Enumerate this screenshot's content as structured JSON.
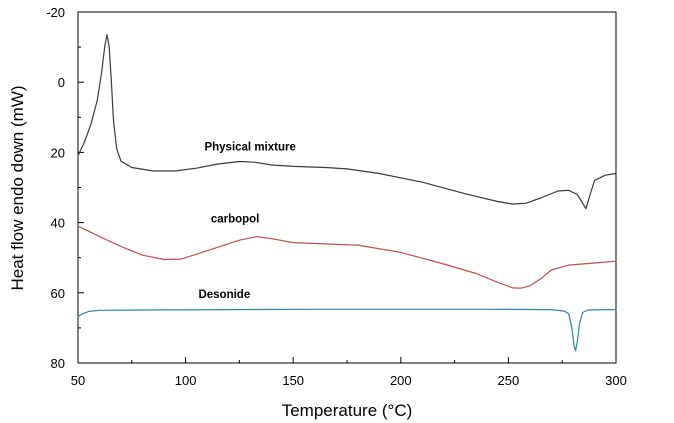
{
  "chart_data": {
    "type": "line",
    "title": "",
    "xlabel": "Temperature (°C)",
    "ylabel": "Heat flow endo down (mW)",
    "xlim": [
      50,
      300
    ],
    "ylim": [
      80,
      -20
    ],
    "y_inverted": true,
    "x_ticks": [
      "50",
      "100",
      "150",
      "200",
      "250",
      "300"
    ],
    "y_ticks": [
      "-20",
      "0",
      "20",
      "40",
      "60",
      "80"
    ],
    "grid": false,
    "series": [
      {
        "name": "Physical mixture",
        "color": "#3a3a3a",
        "points": [
          [
            50,
            21
          ],
          [
            53,
            17
          ],
          [
            56,
            12
          ],
          [
            59,
            5
          ],
          [
            61,
            -3
          ],
          [
            62.5,
            -10.5
          ],
          [
            63.5,
            -13.5
          ],
          [
            64.5,
            -10
          ],
          [
            65.5,
            0
          ],
          [
            66.5,
            11
          ],
          [
            68,
            19
          ],
          [
            70,
            22.5
          ],
          [
            75,
            24.3
          ],
          [
            85,
            25.3
          ],
          [
            95,
            25.3
          ],
          [
            105,
            24.5
          ],
          [
            115,
            23.3
          ],
          [
            125,
            22.6
          ],
          [
            132,
            22.8
          ],
          [
            140,
            23.6
          ],
          [
            150,
            24
          ],
          [
            165,
            24.3
          ],
          [
            175,
            24.7
          ],
          [
            190,
            26
          ],
          [
            210,
            28.5
          ],
          [
            230,
            31.8
          ],
          [
            245,
            34
          ],
          [
            252,
            34.7
          ],
          [
            258,
            34.5
          ],
          [
            265,
            33
          ],
          [
            273,
            31
          ],
          [
            278,
            30.8
          ],
          [
            282,
            32
          ],
          [
            284,
            34
          ],
          [
            286,
            36
          ],
          [
            288,
            32
          ],
          [
            290,
            28
          ],
          [
            295,
            26.5
          ],
          [
            300,
            26
          ]
        ]
      },
      {
        "name": "carbopol",
        "color": "#c0504d",
        "points": [
          [
            50,
            41
          ],
          [
            60,
            44
          ],
          [
            70,
            46.8
          ],
          [
            80,
            49.3
          ],
          [
            90,
            50.5
          ],
          [
            98,
            50.4
          ],
          [
            105,
            49
          ],
          [
            115,
            47
          ],
          [
            125,
            45
          ],
          [
            133,
            44
          ],
          [
            140,
            44.6
          ],
          [
            150,
            45.7
          ],
          [
            170,
            46.2
          ],
          [
            180,
            46.4
          ],
          [
            200,
            48.5
          ],
          [
            220,
            51.8
          ],
          [
            235,
            54.5
          ],
          [
            245,
            57
          ],
          [
            252,
            58.6
          ],
          [
            256,
            58.7
          ],
          [
            260,
            58
          ],
          [
            265,
            56
          ],
          [
            270,
            53.5
          ],
          [
            278,
            52.1
          ],
          [
            290,
            51.5
          ],
          [
            300,
            51
          ]
        ]
      },
      {
        "name": "Desonide",
        "color": "#31859c",
        "points": [
          [
            50,
            66.8
          ],
          [
            52,
            66
          ],
          [
            55,
            65.3
          ],
          [
            60,
            65
          ],
          [
            80,
            64.9
          ],
          [
            120,
            64.8
          ],
          [
            160,
            64.7
          ],
          [
            200,
            64.7
          ],
          [
            240,
            64.7
          ],
          [
            270,
            64.8
          ],
          [
            276,
            65.2
          ],
          [
            278,
            66
          ],
          [
            279.5,
            70
          ],
          [
            280.5,
            75
          ],
          [
            281.2,
            76.5
          ],
          [
            282,
            74
          ],
          [
            283,
            69
          ],
          [
            284.5,
            65.6
          ],
          [
            287,
            64.9
          ],
          [
            295,
            64.8
          ],
          [
            300,
            64.8
          ]
        ]
      }
    ],
    "annotations": [
      {
        "text": "Physical mixture",
        "x": 130,
        "y": 19.5
      },
      {
        "text": "carbopol",
        "x": 123,
        "y": 40
      },
      {
        "text": "Desonide",
        "x": 118,
        "y": 61.5
      }
    ]
  }
}
